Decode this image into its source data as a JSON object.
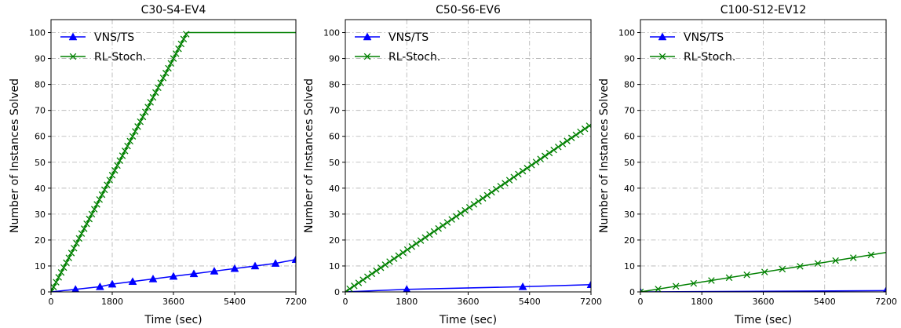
{
  "chart_data": [
    {
      "type": "line",
      "title": "C30-S4-EV4",
      "xlabel": "Time (sec)",
      "ylabel": "Number of Instances Solved",
      "xlim": [
        0,
        7200
      ],
      "ylim": [
        0,
        105
      ],
      "xticks": [
        0,
        1800,
        3600,
        5400,
        7200
      ],
      "yticks": [
        0,
        10,
        20,
        30,
        40,
        50,
        60,
        70,
        80,
        90,
        100
      ],
      "grid": true,
      "legend_position": "top-left",
      "series": [
        {
          "name": "VNS/TS",
          "color": "#0000ff",
          "marker": "triangle",
          "x": [
            0,
            720,
            1440,
            1800,
            2400,
            3000,
            3600,
            4200,
            4800,
            5400,
            6000,
            6600,
            7200
          ],
          "y": [
            0,
            1,
            2,
            3,
            4,
            5,
            6,
            7,
            8,
            9,
            10,
            11,
            12.5
          ]
        },
        {
          "name": "RL-Stoch.",
          "color": "#008000",
          "marker": "x",
          "x": [
            0,
            4000,
            7200
          ],
          "y": [
            0,
            100,
            100
          ]
        }
      ]
    },
    {
      "type": "line",
      "title": "C50-S6-EV6",
      "xlabel": "Time (sec)",
      "ylabel": "Number of Instances Solved",
      "xlim": [
        0,
        7200
      ],
      "ylim": [
        0,
        105
      ],
      "xticks": [
        0,
        1800,
        3600,
        5400,
        7200
      ],
      "yticks": [
        0,
        10,
        20,
        30,
        40,
        50,
        60,
        70,
        80,
        90,
        100
      ],
      "grid": true,
      "legend_position": "top-left",
      "series": [
        {
          "name": "VNS/TS",
          "color": "#0000ff",
          "marker": "triangle",
          "x": [
            0,
            1800,
            5200,
            7200
          ],
          "y": [
            0,
            1,
            2,
            2.8
          ]
        },
        {
          "name": "RL-Stoch.",
          "color": "#008000",
          "marker": "x",
          "x": [
            0,
            7200
          ],
          "y": [
            0,
            64.5
          ]
        }
      ]
    },
    {
      "type": "line",
      "title": "C100-S12-EV12",
      "xlabel": "Time (sec)",
      "ylabel": "Number of Instances Solved",
      "xlim": [
        0,
        7200
      ],
      "ylim": [
        0,
        105
      ],
      "xticks": [
        0,
        1800,
        3600,
        5400,
        7200
      ],
      "yticks": [
        0,
        10,
        20,
        30,
        40,
        50,
        60,
        70,
        80,
        90,
        100
      ],
      "grid": true,
      "legend_position": "top-left",
      "series": [
        {
          "name": "VNS/TS",
          "color": "#0000ff",
          "marker": "triangle",
          "x": [
            0,
            7200
          ],
          "y": [
            0,
            0.5
          ]
        },
        {
          "name": "RL-Stoch.",
          "color": "#008000",
          "marker": "x",
          "x": [
            0,
            7200
          ],
          "y": [
            0,
            15.2
          ]
        }
      ]
    }
  ]
}
